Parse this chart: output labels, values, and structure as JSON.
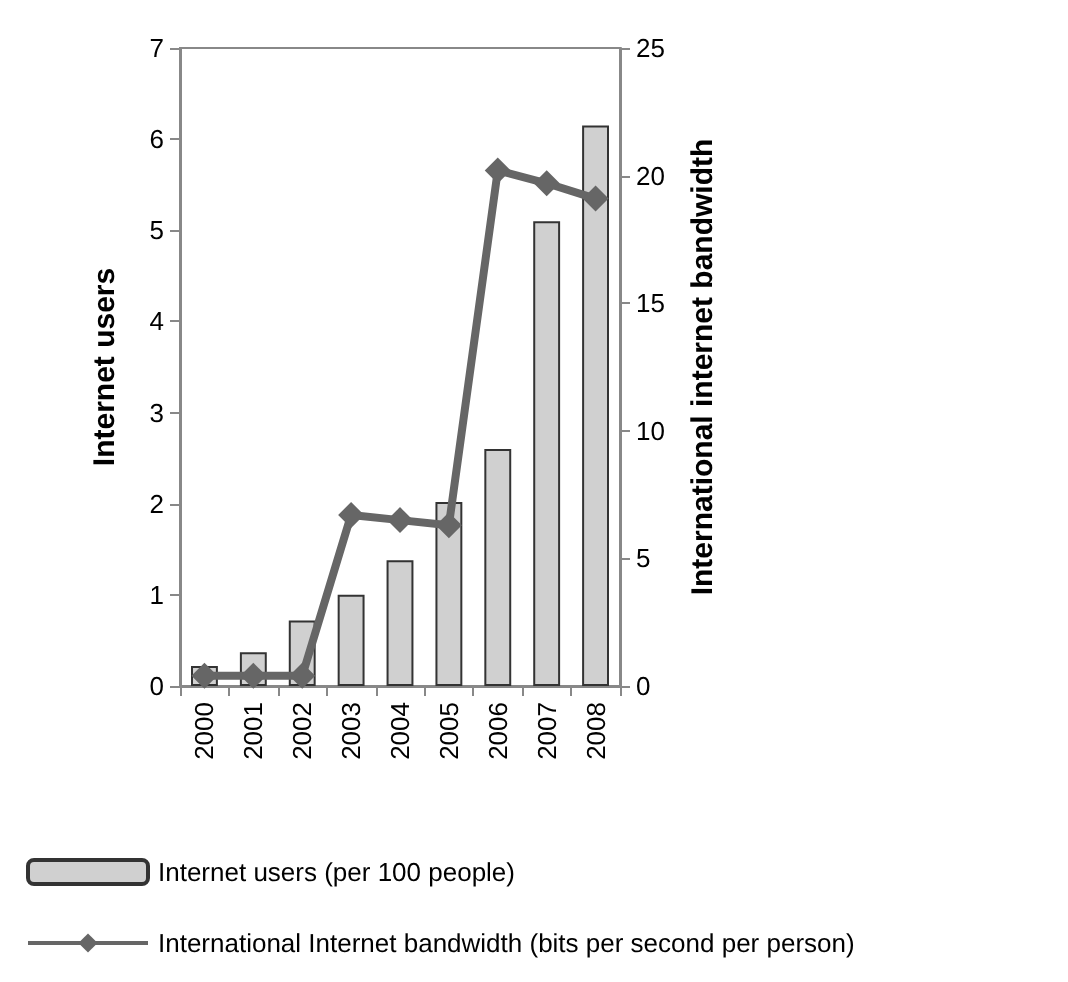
{
  "chart_data": {
    "type": "bar",
    "ylabel": "Internet users",
    "y2label": "International internet bandwidth",
    "categories": [
      "2000",
      "2001",
      "2002",
      "2003",
      "2004",
      "2005",
      "2006",
      "2007",
      "2008"
    ],
    "series": [
      {
        "name": "Internet users (per 100 people)",
        "color": "#d0d0d0",
        "values": [
          0.22,
          0.37,
          0.72,
          1.0,
          1.38,
          2.02,
          2.6,
          5.1,
          6.15
        ]
      },
      {
        "name": "International Internet bandwidth (bits per second per person)",
        "type": "line",
        "axis": "y2",
        "color": "#666666",
        "values": [
          0.4,
          0.4,
          0.4,
          6.7,
          6.5,
          6.3,
          20.2,
          19.7,
          19.1
        ]
      }
    ],
    "ylim": [
      0,
      7
    ],
    "yticks": [
      0,
      1,
      2,
      3,
      4,
      5,
      6,
      7
    ],
    "y2lim": [
      0,
      25
    ],
    "y2ticks": [
      0,
      5,
      10,
      15,
      20,
      25
    ],
    "grid": false,
    "legend": "bottom",
    "marker": "diamond",
    "line_style": "solid"
  }
}
